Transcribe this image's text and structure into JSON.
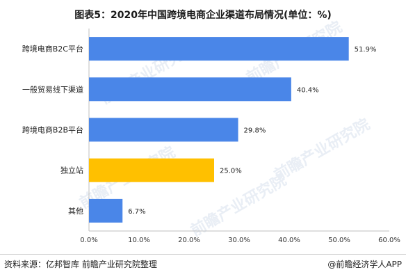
{
  "title": "图表5：2020年中国跨境电商企业渠道布局情况(单位：%)",
  "footer": {
    "source": "资料来源：亿邦智库 前瞻产业研究院整理",
    "brand": "@前瞻经济学人APP"
  },
  "watermark_text": "前瞻产业研究院",
  "chart_data": {
    "type": "bar",
    "orientation": "horizontal",
    "categories": [
      "跨境电商B2C平台",
      "一般贸易线下渠道",
      "跨境电商B2B平台",
      "独立站",
      "其他"
    ],
    "values": [
      51.9,
      40.4,
      29.8,
      25.0,
      6.7
    ],
    "value_labels": [
      "51.9%",
      "40.4%",
      "29.8%",
      "25.0%",
      "6.7%"
    ],
    "colors": [
      "#4a86e8",
      "#4a86e8",
      "#4a86e8",
      "#ffc000",
      "#4a86e8"
    ],
    "xlim": [
      0,
      60
    ],
    "xticks": [
      "0.0%",
      "10.0%",
      "20.0%",
      "30.0%",
      "40.0%",
      "50.0%",
      "60.0%"
    ],
    "grid": false
  }
}
